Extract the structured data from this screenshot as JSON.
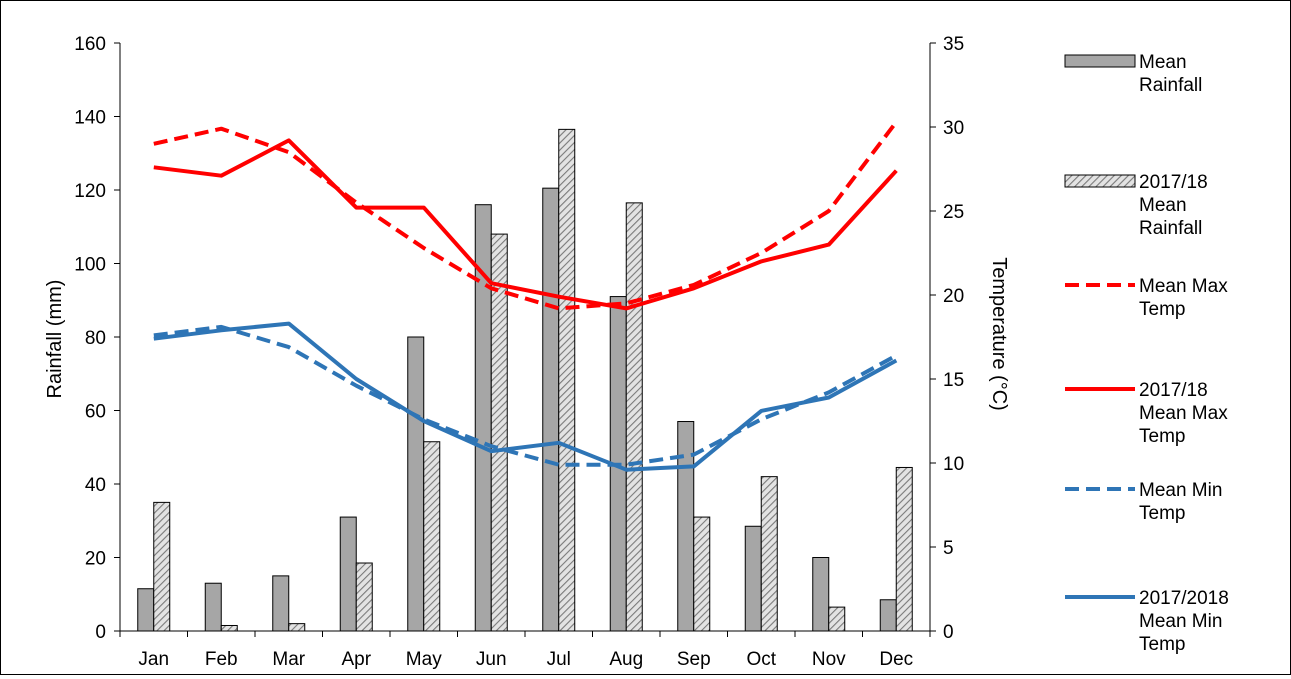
{
  "chart_data": {
    "type": "bar",
    "categories": [
      "Jan",
      "Feb",
      "Mar",
      "Apr",
      "May",
      "Jun",
      "Jul",
      "Aug",
      "Sep",
      "Oct",
      "Nov",
      "Dec"
    ],
    "ylabel": "Rainfall  (mm)",
    "y2label": "Temperature  (°C)",
    "ylim": [
      0,
      160
    ],
    "yticks": [
      "0",
      "20",
      "40",
      "60",
      "80",
      "100",
      "120",
      "140",
      "160"
    ],
    "y2lim": [
      0,
      35
    ],
    "y2ticks": [
      "0",
      "5",
      "10",
      "15",
      "20",
      "25",
      "30",
      "35"
    ],
    "grid": false,
    "legend_position": "right",
    "series": [
      {
        "name_lines": [
          "Mean",
          "Rainfall"
        ],
        "type": "bar",
        "axis": "left",
        "color": "#a6a6a6",
        "pattern": "solid",
        "values": [
          11.5,
          13,
          15,
          31,
          80,
          116,
          120.5,
          91,
          57,
          28.5,
          20,
          8.5
        ]
      },
      {
        "name_lines": [
          "2017/18",
          "Mean",
          "Rainfall"
        ],
        "type": "bar",
        "axis": "left",
        "color": "#d0d0d0",
        "pattern": "hatched",
        "values": [
          35,
          1.5,
          2,
          18.5,
          51.5,
          108,
          136.5,
          116.5,
          31,
          42,
          6.5,
          44.5
        ]
      },
      {
        "name_lines": [
          "Mean Max",
          "Temp"
        ],
        "type": "line",
        "axis": "right",
        "color": "#ff0000",
        "dash": "dashed",
        "values": [
          29,
          29.9,
          28.5,
          25.5,
          22.8,
          20.4,
          19.2,
          19.5,
          20.6,
          22.5,
          25,
          30.3
        ]
      },
      {
        "name_lines": [
          "2017/18",
          "Mean Max",
          "Temp"
        ],
        "type": "line",
        "axis": "right",
        "color": "#ff0000",
        "dash": "solid",
        "values": [
          27.6,
          27.1,
          29.2,
          25.2,
          25.2,
          20.7,
          19.9,
          19.2,
          20.4,
          22,
          23,
          27.4
        ]
      },
      {
        "name_lines": [
          "Mean Min",
          "Temp"
        ],
        "type": "line",
        "axis": "right",
        "color": "#2e75b6",
        "dash": "dashed",
        "values": [
          17.6,
          18.1,
          16.9,
          14.6,
          12.6,
          11,
          9.9,
          9.9,
          10.5,
          12.6,
          14.2,
          16.4
        ]
      },
      {
        "name_lines": [
          "2017/2018",
          "Mean Min",
          "Temp"
        ],
        "type": "line",
        "axis": "right",
        "color": "#2e75b6",
        "dash": "solid",
        "values": [
          17.4,
          17.9,
          18.3,
          15,
          12.5,
          10.7,
          11.2,
          9.6,
          9.8,
          13.1,
          13.9,
          16.1
        ]
      }
    ]
  }
}
